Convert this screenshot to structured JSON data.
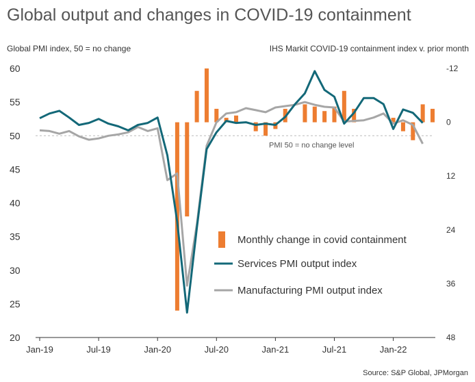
{
  "title": "Global output and changes in COVID-19 containment",
  "left_axis_title": "Global PMI index, 50 =  no change",
  "right_axis_title": "IHS Markit COVID-19 containment index v. prior month",
  "reference_label": "PMI 50 = no change level",
  "source": "Source: S&P Global, JPMorgan",
  "colors": {
    "bars": "#ed7d31",
    "services": "#136878",
    "manufacturing": "#a6a6a6",
    "reference": "#bbbbbb"
  },
  "chart_data": {
    "type": "bar+line",
    "x": [
      "2019-01",
      "2019-02",
      "2019-03",
      "2019-04",
      "2019-05",
      "2019-06",
      "2019-07",
      "2019-08",
      "2019-09",
      "2019-10",
      "2019-11",
      "2019-12",
      "2020-01",
      "2020-02",
      "2020-03",
      "2020-04",
      "2020-05",
      "2020-06",
      "2020-07",
      "2020-08",
      "2020-09",
      "2020-10",
      "2020-11",
      "2020-12",
      "2021-01",
      "2021-02",
      "2021-03",
      "2021-04",
      "2021-05",
      "2021-06",
      "2021-07",
      "2021-08",
      "2021-09",
      "2021-10",
      "2021-11",
      "2021-12",
      "2022-01",
      "2022-02",
      "2022-03",
      "2022-04",
      "2022-05"
    ],
    "x_tick_labels": [
      "Jan-19",
      "Jul-19",
      "Jan-20",
      "Jul-20",
      "Jan-21",
      "Jul-21",
      "Jan-22"
    ],
    "left_axis": {
      "ylim": [
        20,
        60
      ],
      "ticks": [
        20,
        25,
        30,
        35,
        40,
        45,
        50,
        55,
        60
      ]
    },
    "right_axis": {
      "inverted": true,
      "ylim": [
        -12,
        48
      ],
      "tick_labels": [
        "-12",
        "0",
        "12",
        "24",
        "36",
        "48"
      ]
    },
    "series": [
      {
        "name": "Monthly change in covid containment",
        "axis": "right",
        "kind": "bar",
        "values": [
          null,
          null,
          null,
          null,
          null,
          null,
          null,
          null,
          null,
          null,
          null,
          null,
          null,
          null,
          42,
          21,
          -7,
          -12,
          -3,
          -1,
          -1.5,
          0,
          2,
          3,
          1.5,
          -3,
          0,
          -4,
          -3.5,
          -2.5,
          -3.5,
          -7,
          -3,
          0,
          0,
          0,
          -1,
          2,
          4,
          -4,
          -3
        ]
      },
      {
        "name": "Services PMI output index",
        "axis": "left",
        "kind": "line",
        "values": [
          52.6,
          53.3,
          53.7,
          52.7,
          51.6,
          51.9,
          52.5,
          51.8,
          51.4,
          50.8,
          51.6,
          51.9,
          52.7,
          47.1,
          37.2,
          23.7,
          36.3,
          48.0,
          50.5,
          52.2,
          51.9,
          52.0,
          51.6,
          51.8,
          51.6,
          52.8,
          54.7,
          56.3,
          59.6,
          56.8,
          55.8,
          51.8,
          53.4,
          55.6,
          55.6,
          54.7,
          51.0,
          53.9,
          53.4,
          51.9,
          null
        ]
      },
      {
        "name": "Manufacturing PMI output index",
        "axis": "left",
        "kind": "line",
        "values": [
          50.8,
          50.7,
          50.3,
          50.7,
          49.9,
          49.4,
          49.6,
          50.0,
          50.2,
          50.5,
          51.3,
          50.7,
          51.1,
          43.4,
          44.4,
          27.7,
          36.8,
          48.5,
          52.0,
          53.3,
          53.5,
          54.1,
          53.8,
          53.5,
          54.2,
          54.4,
          54.6,
          55.0,
          54.6,
          54.3,
          54.2,
          52.1,
          52.2,
          52.3,
          52.7,
          53.3,
          51.8,
          52.3,
          51.6,
          48.8,
          null
        ]
      }
    ]
  }
}
